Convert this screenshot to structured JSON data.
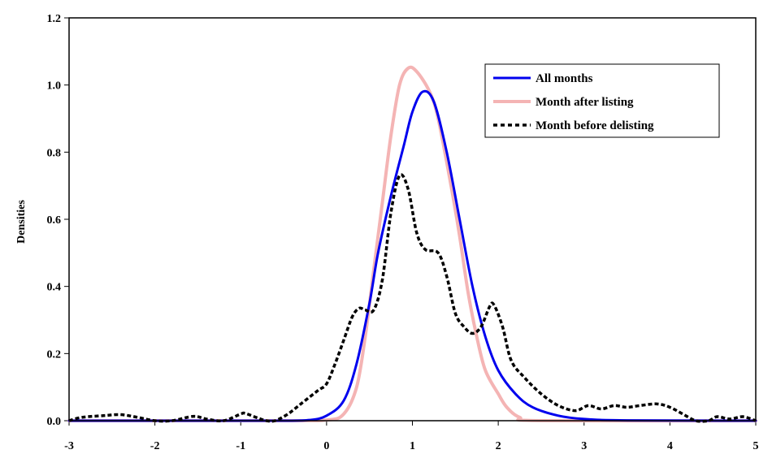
{
  "chart_data": {
    "type": "line",
    "title": "",
    "xlabel": "",
    "ylabel": "Densities",
    "xlim": [
      -3,
      5
    ],
    "ylim": [
      0,
      1.2
    ],
    "x_ticks": [
      "-3",
      "-2",
      "-1",
      "0",
      "1",
      "2",
      "3",
      "4",
      "5"
    ],
    "y_ticks": [
      "0.0",
      "0.2",
      "0.4",
      "0.6",
      "0.8",
      "1.0",
      "1.2"
    ],
    "grid": false,
    "legend_position": "top-right",
    "series": [
      {
        "name": "All months",
        "color": "#0000ee",
        "style": "solid",
        "points": [
          [
            -3,
            0
          ],
          [
            -1,
            0
          ],
          [
            -0.5,
            0
          ],
          [
            -0.2,
            0.002
          ],
          [
            0,
            0.015
          ],
          [
            0.2,
            0.06
          ],
          [
            0.35,
            0.17
          ],
          [
            0.5,
            0.35
          ],
          [
            0.6,
            0.5
          ],
          [
            0.75,
            0.67
          ],
          [
            0.9,
            0.82
          ],
          [
            1.0,
            0.92
          ],
          [
            1.12,
            0.98
          ],
          [
            1.25,
            0.95
          ],
          [
            1.4,
            0.8
          ],
          [
            1.55,
            0.6
          ],
          [
            1.7,
            0.4
          ],
          [
            1.85,
            0.25
          ],
          [
            2.0,
            0.15
          ],
          [
            2.2,
            0.08
          ],
          [
            2.4,
            0.04
          ],
          [
            2.7,
            0.015
          ],
          [
            3.0,
            0.005
          ],
          [
            3.5,
            0.001
          ],
          [
            5,
            0
          ]
        ]
      },
      {
        "name": "Month after listing",
        "color": "#f4b4b4",
        "style": "solid",
        "points": [
          [
            -3,
            0
          ],
          [
            -0.5,
            0
          ],
          [
            0,
            0.002
          ],
          [
            0.2,
            0.02
          ],
          [
            0.35,
            0.1
          ],
          [
            0.45,
            0.25
          ],
          [
            0.55,
            0.45
          ],
          [
            0.65,
            0.65
          ],
          [
            0.75,
            0.85
          ],
          [
            0.85,
            1.0
          ],
          [
            0.95,
            1.05
          ],
          [
            1.05,
            1.04
          ],
          [
            1.2,
            0.98
          ],
          [
            1.3,
            0.9
          ],
          [
            1.45,
            0.7
          ],
          [
            1.55,
            0.55
          ],
          [
            1.65,
            0.38
          ],
          [
            1.75,
            0.25
          ],
          [
            1.85,
            0.15
          ],
          [
            2.0,
            0.08
          ],
          [
            2.1,
            0.04
          ],
          [
            2.25,
            0.01
          ],
          [
            2.5,
            0.0
          ],
          [
            5,
            0
          ]
        ]
      },
      {
        "name": "Month before delisting",
        "color": "#000000",
        "style": "dashed",
        "points": [
          [
            -3,
            0
          ],
          [
            -2.85,
            0.01
          ],
          [
            -2.6,
            0.015
          ],
          [
            -2.4,
            0.018
          ],
          [
            -2.2,
            0.01
          ],
          [
            -2.0,
            0.0
          ],
          [
            -1.8,
            0.0
          ],
          [
            -1.55,
            0.013
          ],
          [
            -1.4,
            0.005
          ],
          [
            -1.2,
            0.0
          ],
          [
            -1.0,
            0.02
          ],
          [
            -0.95,
            0.022
          ],
          [
            -0.8,
            0.008
          ],
          [
            -0.7,
            0.0
          ],
          [
            -0.6,
            0.0
          ],
          [
            -0.45,
            0.02
          ],
          [
            -0.3,
            0.05
          ],
          [
            -0.1,
            0.09
          ],
          [
            0.0,
            0.11
          ],
          [
            0.1,
            0.17
          ],
          [
            0.2,
            0.24
          ],
          [
            0.3,
            0.31
          ],
          [
            0.38,
            0.335
          ],
          [
            0.45,
            0.33
          ],
          [
            0.55,
            0.33
          ],
          [
            0.65,
            0.42
          ],
          [
            0.75,
            0.62
          ],
          [
            0.85,
            0.73
          ],
          [
            0.95,
            0.69
          ],
          [
            1.05,
            0.56
          ],
          [
            1.15,
            0.51
          ],
          [
            1.3,
            0.5
          ],
          [
            1.4,
            0.43
          ],
          [
            1.5,
            0.32
          ],
          [
            1.6,
            0.28
          ],
          [
            1.7,
            0.26
          ],
          [
            1.8,
            0.28
          ],
          [
            1.9,
            0.34
          ],
          [
            1.95,
            0.345
          ],
          [
            2.05,
            0.28
          ],
          [
            2.15,
            0.18
          ],
          [
            2.3,
            0.13
          ],
          [
            2.5,
            0.08
          ],
          [
            2.7,
            0.045
          ],
          [
            2.9,
            0.03
          ],
          [
            3.05,
            0.045
          ],
          [
            3.2,
            0.035
          ],
          [
            3.35,
            0.045
          ],
          [
            3.5,
            0.04
          ],
          [
            3.65,
            0.045
          ],
          [
            3.85,
            0.05
          ],
          [
            4.0,
            0.04
          ],
          [
            4.15,
            0.02
          ],
          [
            4.3,
            0.0
          ],
          [
            4.45,
            0.0
          ],
          [
            4.55,
            0.012
          ],
          [
            4.7,
            0.005
          ],
          [
            4.85,
            0.012
          ],
          [
            5.0,
            0.0
          ]
        ]
      }
    ]
  }
}
